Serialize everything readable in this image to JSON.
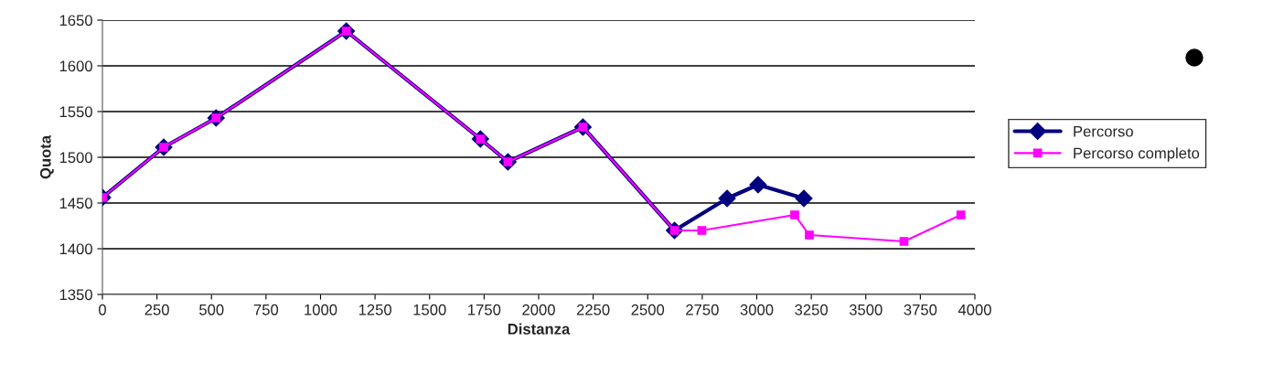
{
  "chart_data": {
    "type": "line",
    "xlabel": "Distanza",
    "ylabel": "Quota",
    "series": [
      {
        "name": "Percorso",
        "color": "#000080",
        "marker": "diamond",
        "x": [
          0,
          281,
          521,
          1118,
          1733,
          1859,
          2203,
          2623,
          2864,
          3006,
          3216
        ],
        "values": [
          1456,
          1511,
          1543,
          1638,
          1520,
          1495,
          1533,
          1420,
          1455,
          1470,
          1455
        ]
      },
      {
        "name": "Percorso completo",
        "color": "#ff00ff",
        "marker": "square",
        "x": [
          0,
          281,
          521,
          1118,
          1733,
          1859,
          2203,
          2623,
          2748,
          3174,
          3241,
          3675,
          3936
        ],
        "values": [
          1456,
          1511,
          1543,
          1638,
          1520,
          1495,
          1533,
          1420,
          1420,
          1437,
          1415,
          1408,
          1437
        ]
      }
    ],
    "xlim": [
      0,
      4000
    ],
    "xticks": [
      0,
      250,
      500,
      750,
      1000,
      1250,
      1500,
      1750,
      2000,
      2250,
      2500,
      2750,
      3000,
      3250,
      3500,
      3750,
      4000
    ],
    "ylim": [
      1350,
      1650
    ],
    "yticks": [
      1350,
      1400,
      1450,
      1500,
      1550,
      1600,
      1650
    ],
    "grid": "y",
    "legend": "right",
    "line_style": "solid"
  }
}
